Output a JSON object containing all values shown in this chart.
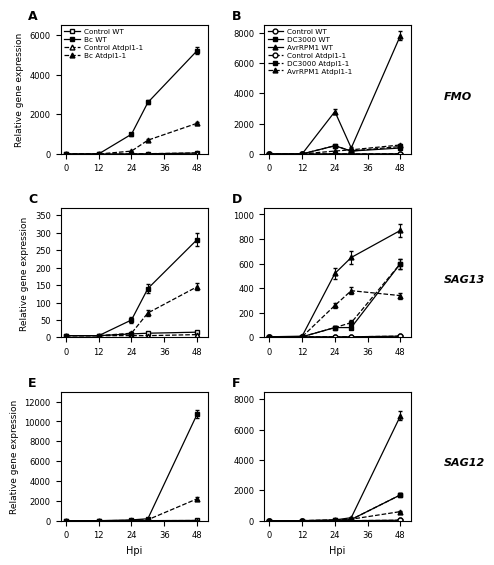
{
  "xvals": [
    0,
    12,
    24,
    30,
    48
  ],
  "panel_A": {
    "label": "A",
    "ylabel": "Relative gene expression",
    "ylim": [
      0,
      6500
    ],
    "yticks": [
      0,
      2000,
      4000,
      6000
    ],
    "series": [
      {
        "label": "Control WT",
        "marker": "s",
        "linestyle": "-",
        "filled": false,
        "data": [
          5,
          5,
          10,
          15,
          50
        ],
        "err": [
          2,
          2,
          3,
          3,
          10
        ]
      },
      {
        "label": "Bc WT",
        "marker": "s",
        "linestyle": "-",
        "filled": true,
        "data": [
          5,
          10,
          1000,
          2600,
          5200
        ],
        "err": [
          3,
          3,
          80,
          100,
          180
        ]
      },
      {
        "label": "Control Atdpl1-1",
        "marker": "^",
        "linestyle": "--",
        "filled": false,
        "data": [
          5,
          5,
          10,
          20,
          60
        ],
        "err": [
          2,
          2,
          3,
          4,
          10
        ]
      },
      {
        "label": "Bc Atdpl1-1",
        "marker": "^",
        "linestyle": "--",
        "filled": true,
        "data": [
          5,
          5,
          150,
          700,
          1550
        ],
        "err": [
          2,
          2,
          20,
          50,
          80
        ]
      }
    ]
  },
  "panel_B": {
    "label": "B",
    "gene": "FMO",
    "ylabel": "",
    "ylim": [
      0,
      8500
    ],
    "yticks": [
      0,
      2000,
      4000,
      6000,
      8000
    ],
    "series": [
      {
        "label": "Control WT",
        "marker": "o",
        "linestyle": "-",
        "filled": false,
        "data": [
          5,
          5,
          20,
          10,
          20
        ],
        "err": [
          2,
          2,
          5,
          3,
          5
        ]
      },
      {
        "label": "DC3000 WT",
        "marker": "s",
        "linestyle": "-",
        "filled": true,
        "data": [
          5,
          10,
          550,
          200,
          400
        ],
        "err": [
          2,
          2,
          50,
          30,
          40
        ]
      },
      {
        "label": "AvrRPM1 WT",
        "marker": "^",
        "linestyle": "-",
        "filled": true,
        "data": [
          5,
          10,
          2800,
          400,
          7800
        ],
        "err": [
          2,
          3,
          180,
          40,
          280
        ]
      },
      {
        "label": "Control Atdpl1-1",
        "marker": "o",
        "linestyle": "--",
        "filled": false,
        "data": [
          5,
          5,
          20,
          10,
          20
        ],
        "err": [
          2,
          2,
          5,
          3,
          5
        ]
      },
      {
        "label": "DC3000 Atdpl1-1",
        "marker": "s",
        "linestyle": "--",
        "filled": true,
        "data": [
          5,
          10,
          550,
          200,
          500
        ],
        "err": [
          2,
          2,
          40,
          20,
          40
        ]
      },
      {
        "label": "AvrRPM1 Atdpl1-1",
        "marker": "^",
        "linestyle": "--",
        "filled": true,
        "data": [
          5,
          10,
          200,
          280,
          600
        ],
        "err": [
          2,
          3,
          20,
          25,
          50
        ]
      }
    ]
  },
  "panel_C": {
    "label": "C",
    "ylabel": "Relative gene expression",
    "ylim": [
      0,
      370
    ],
    "yticks": [
      0,
      50,
      100,
      150,
      200,
      250,
      300,
      350
    ],
    "series": [
      {
        "label": "Control WT",
        "marker": "s",
        "linestyle": "-",
        "filled": false,
        "data": [
          5,
          5,
          10,
          12,
          15
        ],
        "err": [
          1,
          1,
          2,
          2,
          2
        ]
      },
      {
        "label": "Bc WT",
        "marker": "s",
        "linestyle": "-",
        "filled": true,
        "data": [
          5,
          5,
          50,
          140,
          280
        ],
        "err": [
          2,
          2,
          8,
          12,
          18
        ]
      },
      {
        "label": "Control Atdpl1-1",
        "marker": "^",
        "linestyle": "--",
        "filled": false,
        "data": [
          5,
          5,
          5,
          5,
          8
        ],
        "err": [
          1,
          1,
          1,
          1,
          1
        ]
      },
      {
        "label": "Bc Atdpl1-1",
        "marker": "^",
        "linestyle": "--",
        "filled": true,
        "data": [
          5,
          5,
          12,
          70,
          145
        ],
        "err": [
          2,
          2,
          4,
          8,
          10
        ]
      }
    ]
  },
  "panel_D": {
    "label": "D",
    "gene": "SAG13",
    "ylabel": "",
    "ylim": [
      0,
      1050
    ],
    "yticks": [
      0,
      200,
      400,
      600,
      800,
      1000
    ],
    "series": [
      {
        "label": "Control WT",
        "marker": "o",
        "linestyle": "-",
        "filled": false,
        "data": [
          5,
          5,
          5,
          5,
          10
        ],
        "err": [
          1,
          1,
          1,
          1,
          2
        ]
      },
      {
        "label": "DC3000 WT",
        "marker": "s",
        "linestyle": "-",
        "filled": true,
        "data": [
          5,
          5,
          80,
          80,
          600
        ],
        "err": [
          2,
          2,
          12,
          12,
          40
        ]
      },
      {
        "label": "AvrRPM1 WT",
        "marker": "^",
        "linestyle": "-",
        "filled": true,
        "data": [
          5,
          10,
          520,
          650,
          870
        ],
        "err": [
          2,
          3,
          45,
          55,
          55
        ]
      },
      {
        "label": "Control Atdpl1-1",
        "marker": "o",
        "linestyle": "--",
        "filled": false,
        "data": [
          5,
          5,
          5,
          5,
          10
        ],
        "err": [
          1,
          1,
          1,
          1,
          2
        ]
      },
      {
        "label": "DC3000 Atdpl1-1",
        "marker": "s",
        "linestyle": "--",
        "filled": true,
        "data": [
          5,
          5,
          80,
          120,
          600
        ],
        "err": [
          2,
          2,
          12,
          18,
          40
        ]
      },
      {
        "label": "AvrRPM1 Atdpl1-1",
        "marker": "^",
        "linestyle": "--",
        "filled": true,
        "data": [
          5,
          5,
          260,
          380,
          340
        ],
        "err": [
          2,
          2,
          20,
          30,
          25
        ]
      }
    ]
  },
  "panel_E": {
    "label": "E",
    "ylabel": "Relative gene expression",
    "ylim": [
      0,
      13000
    ],
    "yticks": [
      0,
      2000,
      4000,
      6000,
      8000,
      10000,
      12000
    ],
    "series": [
      {
        "label": "Control WT",
        "marker": "s",
        "linestyle": "-",
        "filled": false,
        "data": [
          5,
          5,
          5,
          10,
          30
        ],
        "err": [
          1,
          1,
          1,
          2,
          5
        ]
      },
      {
        "label": "Bc WT",
        "marker": "s",
        "linestyle": "-",
        "filled": true,
        "data": [
          5,
          5,
          80,
          200,
          10700
        ],
        "err": [
          2,
          2,
          12,
          20,
          400
        ]
      },
      {
        "label": "Control Atdpl1-1",
        "marker": "^",
        "linestyle": "--",
        "filled": false,
        "data": [
          5,
          5,
          5,
          5,
          20
        ],
        "err": [
          1,
          1,
          1,
          1,
          3
        ]
      },
      {
        "label": "Bc Atdpl1-1",
        "marker": "^",
        "linestyle": "--",
        "filled": true,
        "data": [
          5,
          5,
          30,
          100,
          2200
        ],
        "err": [
          2,
          2,
          5,
          12,
          150
        ]
      }
    ]
  },
  "panel_F": {
    "label": "F",
    "gene": "SAG12",
    "ylabel": "",
    "ylim": [
      0,
      8500
    ],
    "yticks": [
      0,
      2000,
      4000,
      6000,
      8000
    ],
    "series": [
      {
        "label": "Control WT",
        "marker": "o",
        "linestyle": "-",
        "filled": false,
        "data": [
          5,
          5,
          5,
          5,
          30
        ],
        "err": [
          1,
          1,
          1,
          1,
          4
        ]
      },
      {
        "label": "DC3000 WT",
        "marker": "s",
        "linestyle": "-",
        "filled": true,
        "data": [
          5,
          5,
          20,
          80,
          1700
        ],
        "err": [
          2,
          2,
          5,
          12,
          100
        ]
      },
      {
        "label": "AvrRPM1 WT",
        "marker": "^",
        "linestyle": "-",
        "filled": true,
        "data": [
          5,
          5,
          50,
          200,
          6900
        ],
        "err": [
          2,
          2,
          8,
          18,
          300
        ]
      },
      {
        "label": "Control Atdpl1-1",
        "marker": "o",
        "linestyle": "--",
        "filled": false,
        "data": [
          5,
          5,
          5,
          5,
          30
        ],
        "err": [
          1,
          1,
          1,
          1,
          4
        ]
      },
      {
        "label": "DC3000 Atdpl1-1",
        "marker": "s",
        "linestyle": "--",
        "filled": true,
        "data": [
          5,
          5,
          20,
          80,
          1700
        ],
        "err": [
          2,
          2,
          5,
          12,
          100
        ]
      },
      {
        "label": "AvrRPM1 Atdpl1-1",
        "marker": "^",
        "linestyle": "--",
        "filled": true,
        "data": [
          5,
          5,
          50,
          100,
          600
        ],
        "err": [
          2,
          2,
          8,
          10,
          50
        ]
      }
    ]
  },
  "xlabel": "Hpi"
}
